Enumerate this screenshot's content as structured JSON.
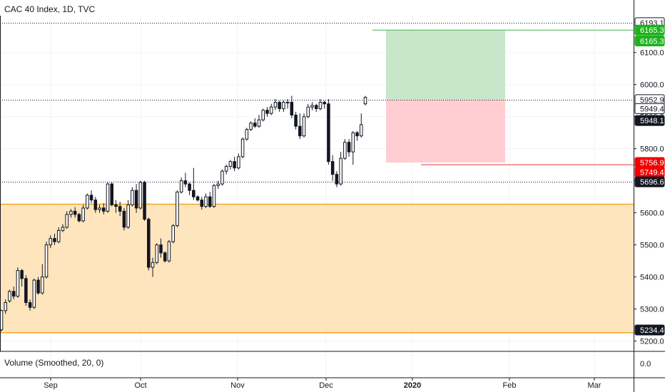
{
  "chart_title": "CAC 40 Index, 1D, TVC",
  "volume_label": "Volume (Smoothed, 20, 0)",
  "chart_data": {
    "type": "candlestick",
    "title": "CAC 40 Index, 1D, TVC",
    "x_ticks": [
      "Sep",
      "Oct",
      "Nov",
      "Dec",
      "2020",
      "Feb",
      "Mar"
    ],
    "y_ticks": [
      5200,
      5300,
      5400,
      5500,
      5600,
      5700,
      5800,
      5900,
      6000,
      6100
    ],
    "y_tick_labels": [
      "5200.0",
      "5300.0",
      "5400.0",
      "5500.0",
      "5600.0",
      "5700.0",
      "5800.0",
      "5900.0",
      "6000.0",
      "6100.0"
    ],
    "ylim": [
      5170,
      6215
    ],
    "volume_ticks": [
      {
        "value": 0,
        "label": "0.0"
      }
    ],
    "horizontal_levels": [
      6193.1,
      5952.9,
      5696.6
    ],
    "price_tags": [
      {
        "label": "6193.1",
        "value": 6193.1,
        "kind": "outline"
      },
      {
        "label": "6165.3",
        "value": 6170,
        "kind": "green"
      },
      {
        "label": "6165.3",
        "value": 6136,
        "kind": "green"
      },
      {
        "label": "5952.9",
        "value": 5952.9,
        "kind": "outline"
      },
      {
        "label": "5949.4",
        "value": 5925,
        "kind": "outline"
      },
      {
        "label": "5948.1",
        "value": 5888,
        "kind": "dark"
      },
      {
        "label": "5756.9",
        "value": 5756.9,
        "kind": "red"
      },
      {
        "label": "5749.4",
        "value": 5727,
        "kind": "red"
      },
      {
        "label": "5696.6",
        "value": 5696.6,
        "kind": "dark"
      },
      {
        "label": "5234.4",
        "value": 5234.4,
        "kind": "dark"
      }
    ],
    "zone": {
      "top": 5627,
      "bottom": 5226
    },
    "position": {
      "entry": 5952.9,
      "target": 6170,
      "stop": 5756.9
    },
    "lines": [
      {
        "value": 6170,
        "color": "#4caf50"
      },
      {
        "value": 5750,
        "color": "#e53935"
      }
    ],
    "candles": [
      [
        5235,
        5295,
        5230,
        5298
      ],
      [
        5295,
        5320,
        5285,
        5330
      ],
      [
        5325,
        5355,
        5320,
        5360
      ],
      [
        5355,
        5340,
        5330,
        5370
      ],
      [
        5340,
        5420,
        5335,
        5430
      ],
      [
        5420,
        5395,
        5370,
        5425
      ],
      [
        5395,
        5320,
        5310,
        5405
      ],
      [
        5320,
        5305,
        5295,
        5330
      ],
      [
        5305,
        5390,
        5300,
        5395
      ],
      [
        5390,
        5350,
        5345,
        5400
      ],
      [
        5350,
        5400,
        5345,
        5440
      ],
      [
        5400,
        5500,
        5395,
        5510
      ],
      [
        5500,
        5520,
        5490,
        5530
      ],
      [
        5520,
        5510,
        5500,
        5535
      ],
      [
        5510,
        5545,
        5505,
        5555
      ],
      [
        5545,
        5555,
        5540,
        5565
      ],
      [
        5555,
        5595,
        5550,
        5605
      ],
      [
        5595,
        5605,
        5585,
        5612
      ],
      [
        5605,
        5595,
        5585,
        5618
      ],
      [
        5595,
        5575,
        5570,
        5600
      ],
      [
        5575,
        5615,
        5570,
        5625
      ],
      [
        5615,
        5655,
        5610,
        5660
      ],
      [
        5655,
        5640,
        5630,
        5670
      ],
      [
        5640,
        5610,
        5600,
        5650
      ],
      [
        5610,
        5615,
        5600,
        5625
      ],
      [
        5615,
        5605,
        5595,
        5630
      ],
      [
        5605,
        5690,
        5600,
        5695
      ],
      [
        5690,
        5625,
        5620,
        5695
      ],
      [
        5625,
        5620,
        5600,
        5640
      ],
      [
        5620,
        5605,
        5590,
        5635
      ],
      [
        5605,
        5555,
        5545,
        5615
      ],
      [
        5555,
        5625,
        5550,
        5640
      ],
      [
        5625,
        5670,
        5620,
        5680
      ],
      [
        5670,
        5615,
        5600,
        5690
      ],
      [
        5615,
        5695,
        5610,
        5700
      ],
      [
        5695,
        5580,
        5575,
        5700
      ],
      [
        5580,
        5430,
        5420,
        5585
      ],
      [
        5430,
        5445,
        5400,
        5460
      ],
      [
        5445,
        5500,
        5440,
        5505
      ],
      [
        5500,
        5475,
        5460,
        5520
      ],
      [
        5475,
        5450,
        5445,
        5480
      ],
      [
        5450,
        5510,
        5445,
        5515
      ],
      [
        5510,
        5560,
        5505,
        5565
      ],
      [
        5560,
        5665,
        5555,
        5670
      ],
      [
        5665,
        5700,
        5660,
        5710
      ],
      [
        5700,
        5690,
        5680,
        5725
      ],
      [
        5690,
        5670,
        5655,
        5695
      ],
      [
        5670,
        5650,
        5640,
        5740
      ],
      [
        5650,
        5640,
        5635,
        5655
      ],
      [
        5640,
        5620,
        5610,
        5650
      ],
      [
        5620,
        5650,
        5615,
        5660
      ],
      [
        5650,
        5620,
        5615,
        5665
      ],
      [
        5620,
        5685,
        5615,
        5690
      ],
      [
        5685,
        5690,
        5675,
        5700
      ],
      [
        5690,
        5730,
        5685,
        5735
      ],
      [
        5730,
        5745,
        5720,
        5750
      ],
      [
        5745,
        5760,
        5735,
        5765
      ],
      [
        5760,
        5740,
        5730,
        5775
      ],
      [
        5740,
        5775,
        5735,
        5785
      ],
      [
        5775,
        5830,
        5770,
        5835
      ],
      [
        5830,
        5860,
        5825,
        5865
      ],
      [
        5860,
        5880,
        5855,
        5885
      ],
      [
        5880,
        5870,
        5865,
        5895
      ],
      [
        5870,
        5890,
        5865,
        5905
      ],
      [
        5890,
        5920,
        5885,
        5925
      ],
      [
        5920,
        5910,
        5900,
        5930
      ],
      [
        5910,
        5930,
        5905,
        5940
      ],
      [
        5930,
        5945,
        5920,
        5955
      ],
      [
        5945,
        5925,
        5915,
        5950
      ],
      [
        5925,
        5945,
        5915,
        5950
      ],
      [
        5945,
        5945,
        5925,
        5955
      ],
      [
        5945,
        5905,
        5895,
        5965
      ],
      [
        5905,
        5870,
        5860,
        5915
      ],
      [
        5870,
        5840,
        5830,
        5910
      ],
      [
        5840,
        5900,
        5835,
        5910
      ],
      [
        5900,
        5930,
        5895,
        5940
      ],
      [
        5930,
        5935,
        5920,
        5945
      ],
      [
        5935,
        5925,
        5915,
        5940
      ],
      [
        5925,
        5945,
        5920,
        5955
      ],
      [
        5945,
        5940,
        5925,
        5950
      ],
      [
        5940,
        5760,
        5750,
        5955
      ],
      [
        5760,
        5720,
        5700,
        5780
      ],
      [
        5720,
        5690,
        5680,
        5730
      ],
      [
        5690,
        5770,
        5685,
        5790
      ],
      [
        5770,
        5820,
        5765,
        5830
      ],
      [
        5820,
        5790,
        5775,
        5830
      ],
      [
        5790,
        5850,
        5750,
        5855
      ],
      [
        5850,
        5840,
        5825,
        5855
      ],
      [
        5840,
        5875,
        5835,
        5910
      ],
      [
        5940,
        5960,
        5935,
        5965
      ]
    ]
  }
}
